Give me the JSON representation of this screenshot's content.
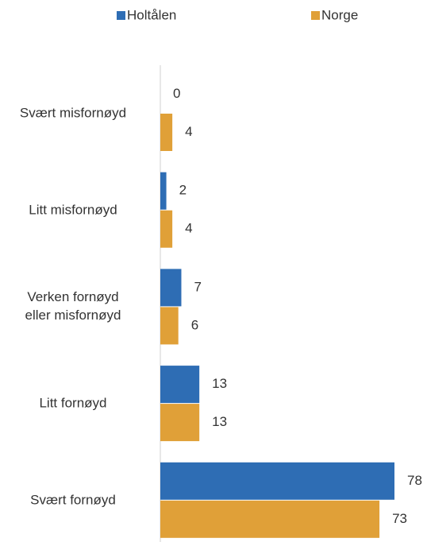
{
  "chart_data": {
    "type": "bar",
    "orientation": "horizontal",
    "categories": [
      "Svært misfornøyd",
      "Litt misfornøyd",
      "Verken fornøyd\neller misfornøyd",
      "Litt fornøyd",
      "Svært fornøyd"
    ],
    "series": [
      {
        "name": "Holtålen",
        "color": "#2e6db4",
        "values": [
          0,
          2,
          7,
          13,
          78
        ]
      },
      {
        "name": "Norge",
        "color": "#e0a038",
        "values": [
          4,
          4,
          6,
          13,
          73
        ]
      }
    ],
    "xlim": [
      0,
      78
    ]
  }
}
